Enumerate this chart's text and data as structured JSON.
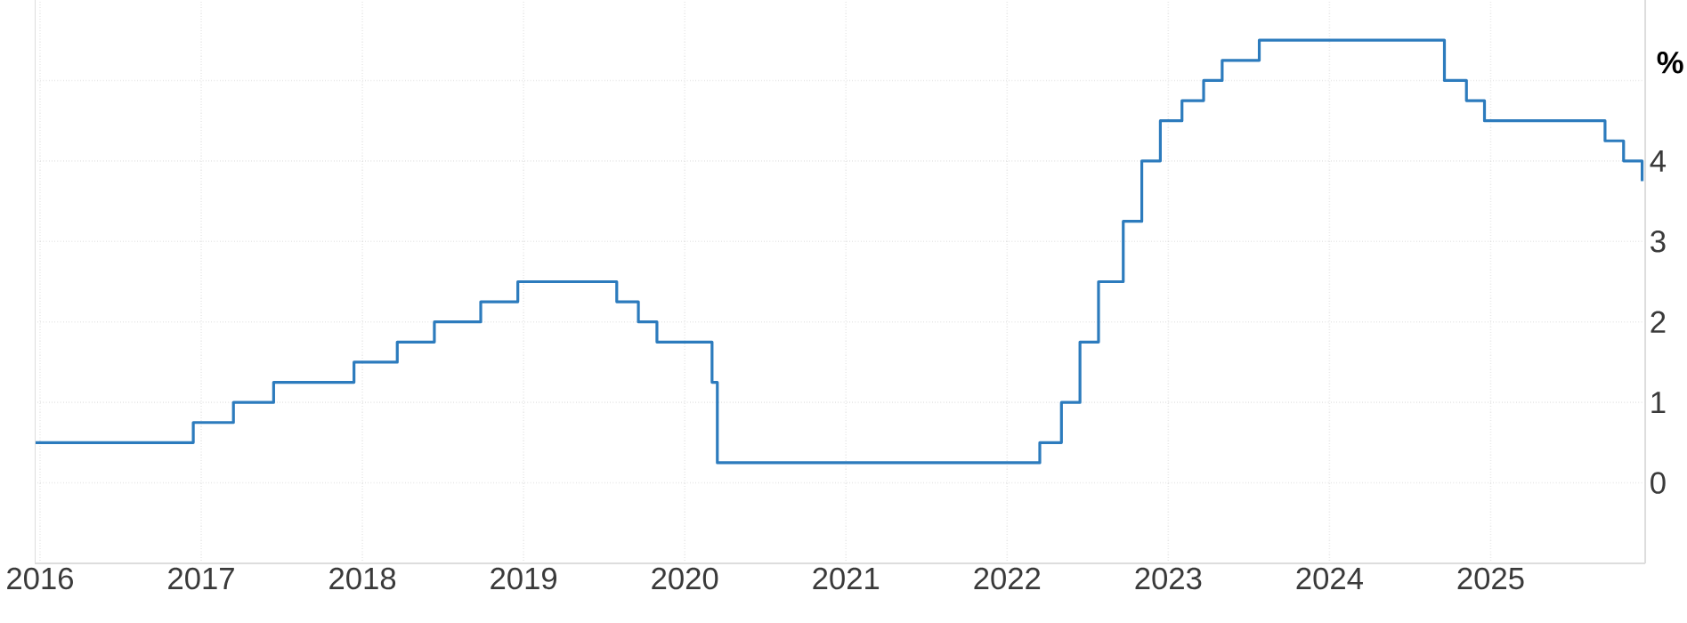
{
  "chart_data": {
    "type": "step",
    "ylabel": "%",
    "x": [
      "2015-12-20",
      "2016-12-14",
      "2017-03-15",
      "2017-06-14",
      "2017-12-13",
      "2018-03-21",
      "2018-06-13",
      "2018-09-26",
      "2018-12-19",
      "2019-07-31",
      "2019-09-18",
      "2019-10-30",
      "2020-03-03",
      "2020-03-15",
      "2022-03-16",
      "2022-05-04",
      "2022-06-15",
      "2022-07-27",
      "2022-09-21",
      "2022-11-02",
      "2022-12-14",
      "2023-02-01",
      "2023-03-22",
      "2023-05-03",
      "2023-07-26",
      "2024-09-18",
      "2024-11-07",
      "2024-12-18",
      "2025-09-17",
      "2025-10-29",
      "2025-12-10"
    ],
    "values": [
      0.5,
      0.75,
      1,
      1.25,
      1.5,
      1.75,
      2,
      2.25,
      2.5,
      2.25,
      2,
      1.75,
      1.25,
      0.25,
      0.5,
      1,
      1.75,
      2.5,
      3.25,
      4,
      4.5,
      4.75,
      5,
      5.25,
      5.5,
      5,
      4.75,
      4.5,
      4.25,
      4,
      3.75
    ],
    "color": "#2c7bbd",
    "xlim": [
      "2015-12-20",
      "2025-12-17"
    ],
    "xticks": [
      "2016",
      "2017",
      "2018",
      "2019",
      "2020",
      "2021",
      "2022",
      "2023",
      "2024",
      "2025"
    ],
    "ylim": [
      -1,
      6
    ],
    "yticks": [
      0,
      1,
      2,
      3,
      4,
      {
        "value": 5,
        "label": null
      }
    ],
    "grid": true
  }
}
